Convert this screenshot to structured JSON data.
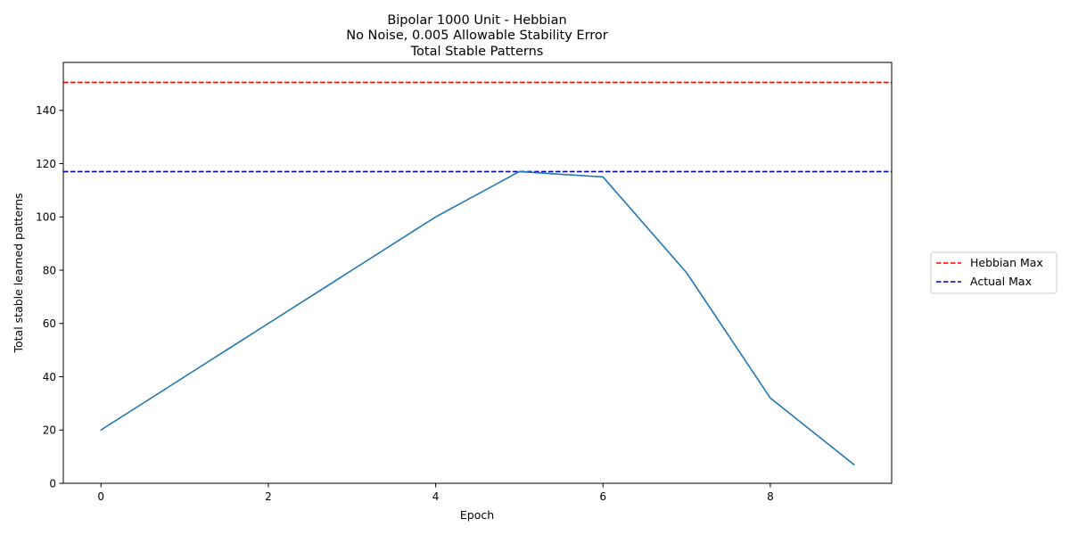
{
  "chart_data": {
    "type": "line",
    "title_lines": [
      "Bipolar 1000 Unit - Hebbian",
      " No Noise, 0.005 Allowable Stability Error",
      "Total Stable Patterns"
    ],
    "xlabel": "Epoch",
    "ylabel": "Total stable learned patterns",
    "xlim": [
      -0.45,
      9.45
    ],
    "ylim": [
      0,
      158
    ],
    "x_ticks": [
      "0",
      "2",
      "4",
      "6",
      "8"
    ],
    "y_ticks": [
      "0",
      "20",
      "40",
      "60",
      "80",
      "100",
      "120",
      "140"
    ],
    "series": [
      {
        "x": [
          0,
          1,
          2,
          3,
          4,
          5,
          6,
          7,
          8,
          9
        ],
        "values": [
          20,
          40,
          60,
          80,
          100,
          117,
          115,
          79,
          32,
          7
        ],
        "color": "#1f77b4"
      }
    ],
    "reference_lines": [
      {
        "name": "Hebbian Max",
        "value": 150.5,
        "color": "#ff0000",
        "style": "dashed"
      },
      {
        "name": "Actual Max",
        "value": 117,
        "color": "#0000cc",
        "style": "dashed"
      }
    ],
    "legend_position": "right, outside plot",
    "grid": false
  }
}
